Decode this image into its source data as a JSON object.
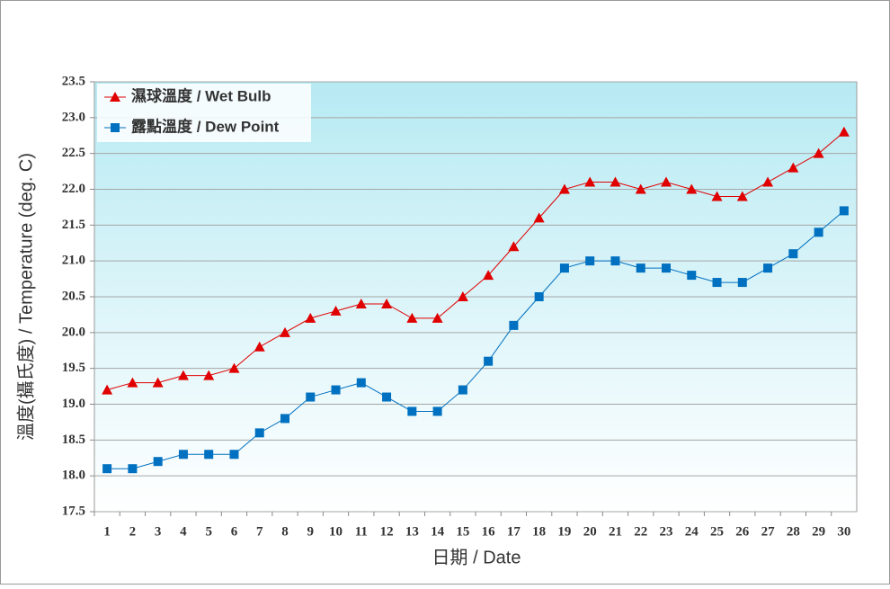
{
  "chart_data": {
    "type": "line",
    "xlabel": "日期 / Date",
    "ylabel": "溫度(攝氏度) / Temperature (deg. C)",
    "categories": [
      "1",
      "2",
      "3",
      "4",
      "5",
      "6",
      "7",
      "8",
      "9",
      "10",
      "11",
      "12",
      "13",
      "14",
      "15",
      "16",
      "17",
      "18",
      "19",
      "20",
      "21",
      "22",
      "23",
      "24",
      "25",
      "26",
      "27",
      "28",
      "29",
      "30"
    ],
    "series": [
      {
        "name": "濕球溫度 / Wet Bulb",
        "color": "#e00000",
        "marker": "triangle",
        "values": [
          19.2,
          19.3,
          19.3,
          19.4,
          19.4,
          19.5,
          19.8,
          20.0,
          20.2,
          20.3,
          20.4,
          20.4,
          20.2,
          20.2,
          20.5,
          20.8,
          21.2,
          21.6,
          22.0,
          22.1,
          22.1,
          22.0,
          22.1,
          22.0,
          21.9,
          21.9,
          22.1,
          22.3,
          22.5,
          22.8
        ]
      },
      {
        "name": "露點溫度 / Dew Point",
        "color": "#0070c0",
        "marker": "square",
        "values": [
          18.1,
          18.1,
          18.2,
          18.3,
          18.3,
          18.3,
          18.6,
          18.8,
          19.1,
          19.2,
          19.3,
          19.1,
          18.9,
          18.9,
          19.2,
          19.6,
          20.1,
          20.5,
          20.9,
          21.0,
          21.0,
          20.9,
          20.9,
          20.8,
          20.7,
          20.7,
          20.9,
          21.1,
          21.4,
          21.7
        ]
      }
    ],
    "ylim": [
      17.5,
      23.5
    ],
    "yticks": [
      17.5,
      {
        "value": 18,
        "label": "18.0"
      },
      18.5,
      {
        "value": 19,
        "label": "19.0"
      },
      19.5,
      {
        "value": 20,
        "label": "20.0"
      },
      20.5,
      {
        "value": 21,
        "label": "21.0"
      },
      21.5,
      {
        "value": 22,
        "label": "22.0"
      },
      22.5,
      {
        "value": 23,
        "label": "23.0"
      },
      23.5
    ],
    "grid": true,
    "legend": "top-left"
  }
}
